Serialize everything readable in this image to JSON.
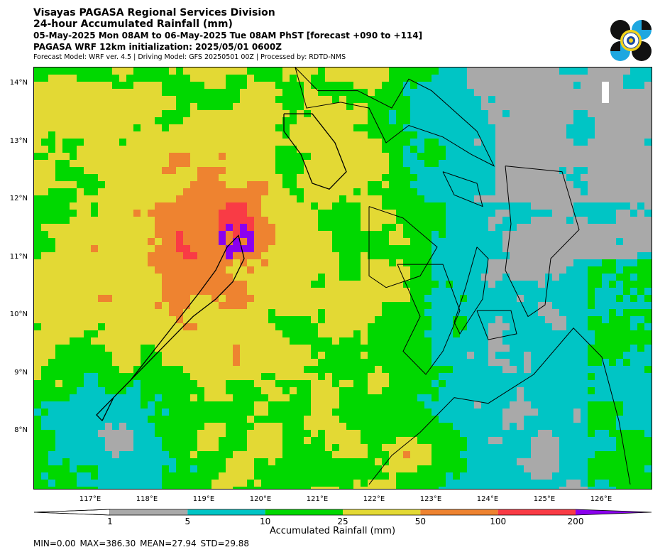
{
  "header": {
    "line1": "Visayas PAGASA Regional Services Division",
    "line2": "24-hour Accumulated Rainfall (mm)",
    "line3": "05-May-2025 Mon 08AM to 06-May-2025 Tue 08AM PhST [forecast +090 to +114]",
    "line4": "PAGASA WRF 12km initialization: 2025/05/01 0600Z",
    "line5": "Forecast Model: WRF ver. 4.5 | Driving Model: GFS 20250501 00Z | Processed by: RDTD-NMS"
  },
  "map": {
    "lat_labels": [
      "14°N",
      "13°N",
      "12°N",
      "11°N",
      "10°N",
      "9°N",
      "8°N"
    ],
    "lon_labels": [
      "117°E",
      "118°E",
      "119°E",
      "120°E",
      "121°E",
      "122°E",
      "123°E",
      "124°E",
      "125°E",
      "126°E"
    ],
    "lat_range": [
      7.0,
      14.3
    ],
    "lon_range": [
      116.0,
      126.9
    ]
  },
  "colorbar": {
    "label": "Accumulated Rainfall (mm)",
    "ticks": [
      "1",
      "5",
      "10",
      "25",
      "50",
      "100",
      "200"
    ],
    "bins": [
      {
        "range": "<1",
        "color": "#ffffff"
      },
      {
        "range": "1-5",
        "color": "#a9a9a9"
      },
      {
        "range": "5-10",
        "color": "#00c5c5"
      },
      {
        "range": "10-25",
        "color": "#00d800"
      },
      {
        "range": "25-50",
        "color": "#e3d934"
      },
      {
        "range": "50-100",
        "color": "#ee8330"
      },
      {
        "range": "100-200",
        "color": "#f93b45"
      },
      {
        "range": ">200",
        "color": "#8b00ee"
      }
    ]
  },
  "stats": {
    "text": "MIN=0.00   MAX=386.30   MEAN=27.94   STD=29.88"
  }
}
